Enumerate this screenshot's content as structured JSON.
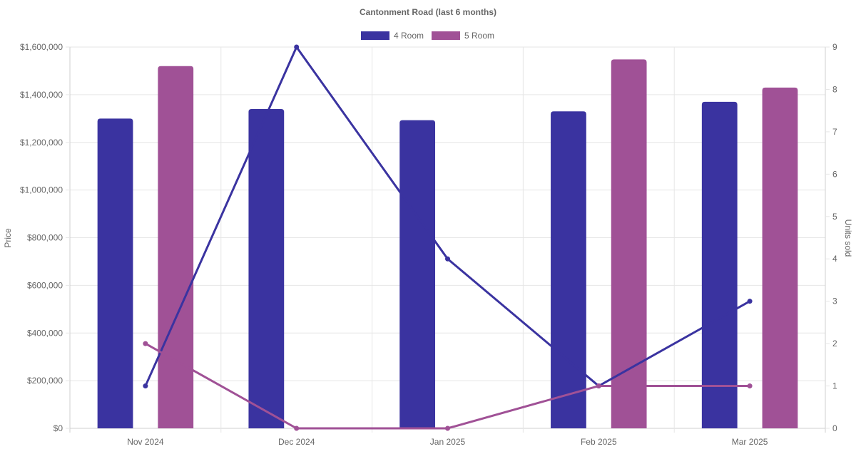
{
  "chart_data": {
    "type": "bar",
    "title": "Cantonment Road (last 6 months)",
    "categories": [
      "Nov 2024",
      "Dec 2024",
      "Jan 2025",
      "Feb 2025",
      "Mar 2025"
    ],
    "y_left": {
      "label": "Price",
      "min": 0,
      "max": 1600000,
      "ticks": [
        0,
        200000,
        400000,
        600000,
        800000,
        1000000,
        1200000,
        1400000,
        1600000
      ],
      "tick_labels": [
        "$0",
        "$200,000",
        "$400,000",
        "$600,000",
        "$800,000",
        "$1,000,000",
        "$1,200,000",
        "$1,400,000",
        "$1,600,000"
      ]
    },
    "y_right": {
      "label": "Units sold",
      "min": 0,
      "max": 9,
      "ticks": [
        0,
        1,
        2,
        3,
        4,
        5,
        6,
        7,
        8,
        9
      ],
      "tick_labels": [
        "0",
        "1",
        "2",
        "3",
        "4",
        "5",
        "6",
        "7",
        "8",
        "9"
      ]
    },
    "bar_series": [
      {
        "name": "4 Room",
        "color": "#3a33a0",
        "values": [
          1300000,
          1340000,
          1293000,
          1330000,
          1370000
        ]
      },
      {
        "name": "5 Room",
        "color": "#a05196",
        "values": [
          1520000,
          null,
          null,
          1548000,
          1430000
        ]
      }
    ],
    "line_series": [
      {
        "series": "4 Room",
        "color": "#3a33a0",
        "values": [
          1,
          9,
          4,
          1,
          3
        ]
      },
      {
        "series": "5 Room",
        "color": "#a05196",
        "values": [
          2,
          0,
          0,
          1,
          1
        ]
      }
    ],
    "legend": {
      "position": "top",
      "entries": [
        "4 Room",
        "5 Room"
      ]
    },
    "grid": true
  }
}
